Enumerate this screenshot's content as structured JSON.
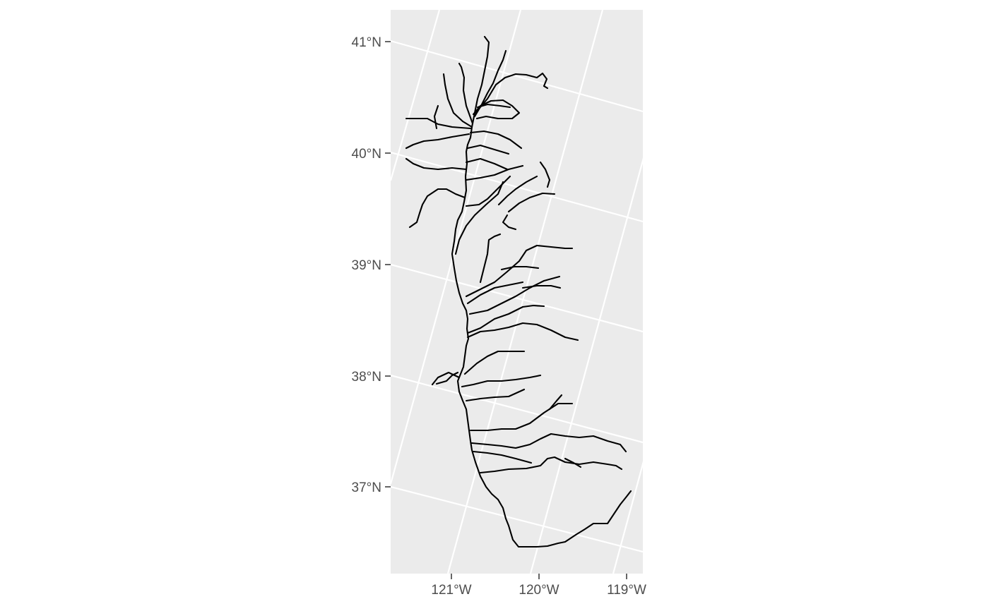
{
  "map": {
    "type": "river network map",
    "background_color": "#ebebeb",
    "gridline_color": "#ffffff",
    "river_color": "#000000",
    "y_axis_labels": [
      "41°N",
      "40°N",
      "39°N",
      "38°N",
      "37°N"
    ],
    "x_axis_labels": [
      "121°W",
      "120°W",
      "119°W"
    ]
  }
}
